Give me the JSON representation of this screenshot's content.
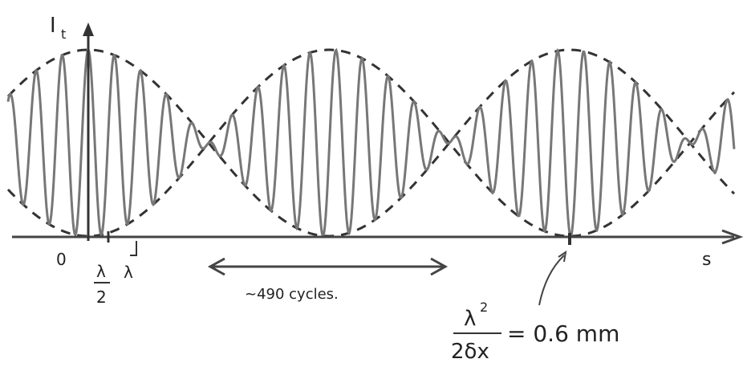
{
  "axes": {
    "y_label": "I",
    "y_label_sub": "t",
    "x_label": "s"
  },
  "ticks": {
    "origin": "0",
    "half_wavelength_num": "λ",
    "half_wavelength_den": "2",
    "wavelength": "λ"
  },
  "annotation": "~490 cycles.",
  "formula": {
    "numerator": "λ",
    "numerator_sup": "2",
    "denominator": "2δx",
    "result": "= 0.6 mm"
  }
}
